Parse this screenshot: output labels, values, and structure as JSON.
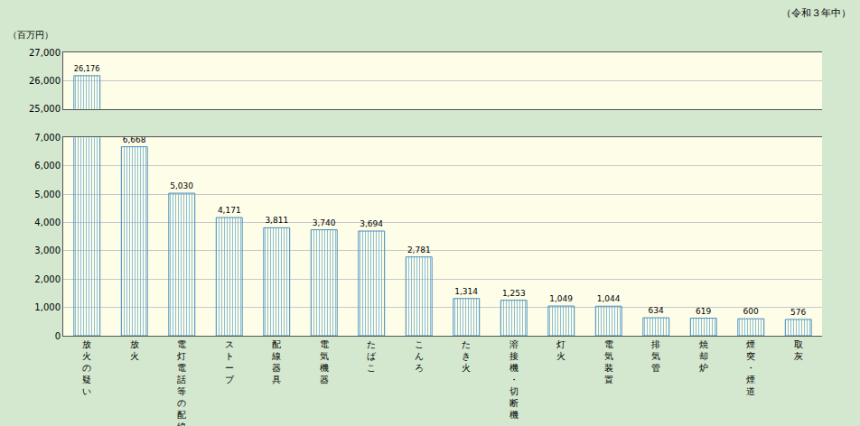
{
  "chart_data": {
    "type": "bar",
    "title": "（令和３年中）",
    "y_label": "（百万円）",
    "categories": [
      "放火の疑い",
      "放火",
      "電灯電話等の配線",
      "ストーブ",
      "配線器具",
      "電気機器",
      "たばこ",
      "こんろ",
      "たき火",
      "溶接機・切断機",
      "灯火",
      "電気装置",
      "排気管",
      "焼却炉",
      "煙突・煙道",
      "取灰"
    ],
    "values": [
      26176,
      6668,
      5030,
      4171,
      3811,
      3740,
      3694,
      2781,
      1314,
      1253,
      1049,
      1044,
      634,
      619,
      600,
      576
    ],
    "value_labels": [
      "26,176",
      "6,668",
      "5,030",
      "4,171",
      "3,811",
      "3,740",
      "3,694",
      "2,781",
      "1,314",
      "1,253",
      "1,049",
      "1,044",
      "634",
      "619",
      "600",
      "576"
    ],
    "color": "#bfe3f2",
    "data_labels": true,
    "grid": true,
    "ylim": [
      0,
      27000
    ],
    "yticks": [
      0,
      {
        "value": 1000,
        "label": "1,000"
      },
      {
        "value": 2000,
        "label": "2,000"
      },
      {
        "value": 3000,
        "label": "3,000"
      },
      {
        "value": 4000,
        "label": "4,000"
      },
      {
        "value": 5000,
        "label": "5,000"
      },
      {
        "value": 6000,
        "label": "6,000"
      },
      {
        "value": 7000,
        "label": "7,000"
      },
      {
        "value": 25000,
        "label": "25,000"
      },
      {
        "value": 26000,
        "label": "26,000"
      },
      {
        "value": 27000,
        "label": "27,000"
      }
    ]
  }
}
